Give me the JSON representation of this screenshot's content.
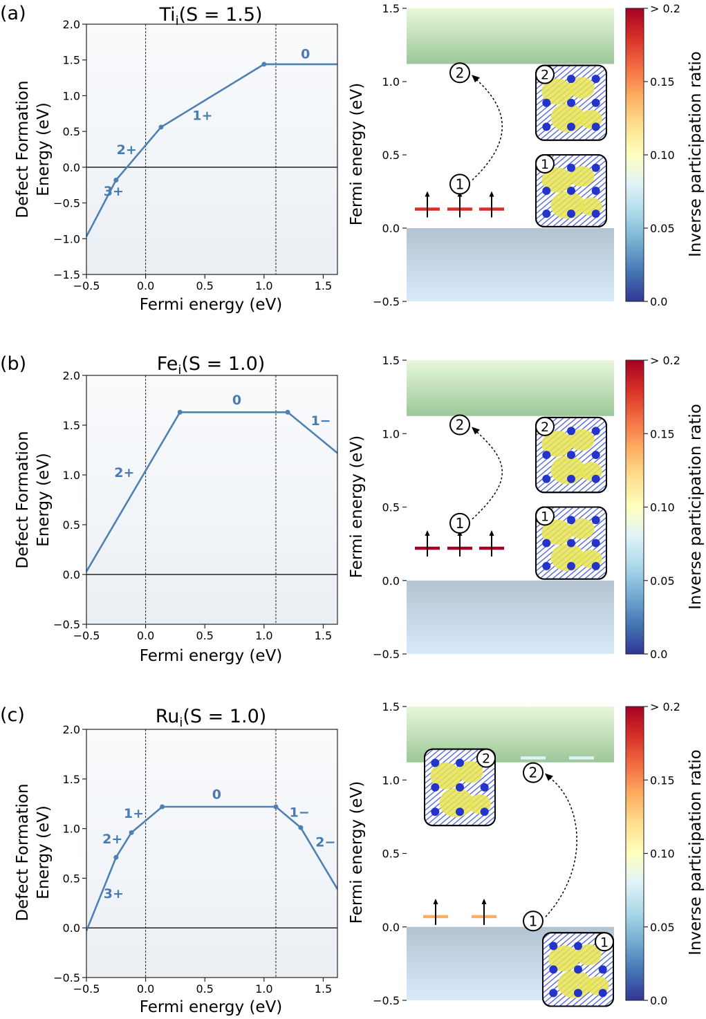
{
  "chart_data": [
    {
      "type": "line",
      "panel_label": "(a)",
      "title": "Ti",
      "title_subscript": "i",
      "title_suffix": "(S = 1.5)",
      "xlabel": "Fermi energy (eV)",
      "ylabel_line1": "Defect Formation",
      "ylabel_line2": "Energy (eV)",
      "xlim": [
        -0.5,
        1.62
      ],
      "ylim": [
        -1.5,
        2.0
      ],
      "xticks": [
        -0.5,
        0.0,
        0.5,
        1.0,
        1.5
      ],
      "xtick_labels": [
        "−0.5",
        "0.0",
        "0.5",
        "1.0",
        "1.5"
      ],
      "yticks": [
        -1.5,
        -1.0,
        -0.5,
        0.0,
        0.5,
        1.0,
        1.5,
        2.0
      ],
      "ytick_labels": [
        "−1.5",
        "−1.0",
        "−0.5",
        "0.0",
        "0.5",
        "1.0",
        "1.5",
        "2.0"
      ],
      "vlines": [
        0.0,
        1.1
      ],
      "line_x": [
        -0.5,
        -0.25,
        0.13,
        1.0,
        1.62
      ],
      "line_y": [
        -0.97,
        -0.18,
        0.56,
        1.44,
        1.44
      ],
      "transitions": [
        [
          -0.25,
          -0.18
        ],
        [
          0.13,
          0.56
        ],
        [
          1.0,
          1.44
        ]
      ],
      "charge_labels": [
        {
          "text": "3+",
          "x": -0.27,
          "y": -0.4
        },
        {
          "text": "2+",
          "x": -0.16,
          "y": 0.18
        },
        {
          "text": "1+",
          "x": 0.48,
          "y": 0.66
        },
        {
          "text": "0",
          "x": 1.35,
          "y": 1.52
        }
      ]
    },
    {
      "type": "line",
      "panel_label": "(b)",
      "title": "Fe",
      "title_subscript": "i",
      "title_suffix": "(S = 1.0)",
      "xlabel": "Fermi energy (eV)",
      "ylabel_line1": "Defect Formation",
      "ylabel_line2": "Energy (eV)",
      "xlim": [
        -0.5,
        1.62
      ],
      "ylim": [
        -0.5,
        2.0
      ],
      "xticks": [
        -0.5,
        0.0,
        0.5,
        1.0,
        1.5
      ],
      "xtick_labels": [
        "−0.5",
        "0.0",
        "0.5",
        "1.0",
        "1.5"
      ],
      "yticks": [
        -0.5,
        0.0,
        0.5,
        1.0,
        1.5,
        2.0
      ],
      "ytick_labels": [
        "−0.5",
        "0.0",
        "0.5",
        "1.0",
        "1.5",
        "2.0"
      ],
      "vlines": [
        0.0,
        1.1
      ],
      "line_x": [
        -0.5,
        0.29,
        1.2,
        1.62
      ],
      "line_y": [
        0.03,
        1.63,
        1.63,
        1.22
      ],
      "transitions": [
        [
          0.29,
          1.63
        ],
        [
          1.2,
          1.63
        ]
      ],
      "charge_labels": [
        {
          "text": "2+",
          "x": -0.18,
          "y": 0.98
        },
        {
          "text": "0",
          "x": 0.77,
          "y": 1.71
        },
        {
          "text": "1−",
          "x": 1.48,
          "y": 1.5
        }
      ]
    },
    {
      "type": "line",
      "panel_label": "(c)",
      "title": "Ru",
      "title_subscript": "i",
      "title_suffix": "(S = 1.0)",
      "xlabel": "Fermi energy (eV)",
      "ylabel_line1": "Defect Formation",
      "ylabel_line2": "Energy (eV)",
      "xlim": [
        -0.5,
        1.62
      ],
      "ylim": [
        -0.5,
        2.0
      ],
      "xticks": [
        -0.5,
        0.0,
        0.5,
        1.0,
        1.5
      ],
      "xtick_labels": [
        "−0.5",
        "0.0",
        "0.5",
        "1.0",
        "1.5"
      ],
      "yticks": [
        -0.5,
        0.0,
        0.5,
        1.0,
        1.5,
        2.0
      ],
      "ytick_labels": [
        "−0.5",
        "0.0",
        "0.5",
        "1.0",
        "1.5",
        "2.0"
      ],
      "vlines": [
        0.0,
        1.1
      ],
      "line_x": [
        -0.5,
        -0.25,
        -0.12,
        0.14,
        1.1,
        1.31,
        1.62
      ],
      "line_y": [
        -0.03,
        0.71,
        0.96,
        1.22,
        1.22,
        1.01,
        0.39
      ],
      "transitions": [
        [
          -0.25,
          0.71
        ],
        [
          -0.12,
          0.96
        ],
        [
          0.14,
          1.22
        ],
        [
          1.1,
          1.22
        ],
        [
          1.31,
          1.01
        ]
      ],
      "charge_labels": [
        {
          "text": "3+",
          "x": -0.27,
          "y": 0.3
        },
        {
          "text": "2+",
          "x": -0.28,
          "y": 0.85
        },
        {
          "text": "1+",
          "x": -0.1,
          "y": 1.11
        },
        {
          "text": "0",
          "x": 0.6,
          "y": 1.3
        },
        {
          "text": "1−",
          "x": 1.3,
          "y": 1.12
        },
        {
          "text": "2−",
          "x": 1.52,
          "y": 0.82
        }
      ]
    },
    {
      "type": "level-diagram",
      "ylabel": "Fermi energy (eV)",
      "ylim": [
        -0.5,
        1.5
      ],
      "yticks": [
        -0.5,
        0.0,
        0.5,
        1.0,
        1.5
      ],
      "ytick_labels": [
        "−0.5",
        "0.0",
        "0.5",
        "1.0",
        "1.5"
      ],
      "cbm": 1.12,
      "levels": [
        {
          "energy": 0.13,
          "ipr": 0.17,
          "spin": "up",
          "count": 3
        }
      ],
      "transition": {
        "from_label": "1",
        "to_label": "2",
        "from_y": 0.3,
        "to_y": 1.06
      },
      "colorbar_label": "Inverse participation ratio",
      "colorbar_ticks": [
        "0.0",
        "0.05",
        "0.10",
        "0.15",
        "> 0.2"
      ]
    },
    {
      "type": "level-diagram",
      "ylabel": "Fermi energy (eV)",
      "ylim": [
        -0.5,
        1.5
      ],
      "yticks": [
        -0.5,
        0.0,
        0.5,
        1.0,
        1.5
      ],
      "ytick_labels": [
        "−0.5",
        "0.0",
        "0.5",
        "1.0",
        "1.5"
      ],
      "cbm": 1.12,
      "levels": [
        {
          "energy": 0.22,
          "ipr": 0.19,
          "spin": "up",
          "count": 3
        }
      ],
      "transition": {
        "from_label": "1",
        "to_label": "2",
        "from_y": 0.39,
        "to_y": 1.06
      },
      "colorbar_label": "Inverse participation ratio",
      "colorbar_ticks": [
        "0.0",
        "0.05",
        "0.10",
        "0.15",
        "> 0.2"
      ]
    },
    {
      "type": "level-diagram",
      "ylabel": "Fermi energy (eV)",
      "ylim": [
        -0.5,
        1.5
      ],
      "yticks": [
        -0.5,
        0.0,
        0.5,
        1.0,
        1.5
      ],
      "ytick_labels": [
        "−0.5",
        "0.0",
        "0.5",
        "1.0",
        "1.5"
      ],
      "cbm": 1.12,
      "levels": [
        {
          "energy": 0.07,
          "ipr": 0.15,
          "spin": "up",
          "count": 2
        },
        {
          "energy": 1.15,
          "ipr": 0.07,
          "spin": "none",
          "count": 2
        }
      ],
      "transition": {
        "from_label": "1",
        "to_label": "2",
        "from_y": 0.04,
        "to_y": 1.05
      },
      "colorbar_label": "Inverse participation ratio",
      "colorbar_ticks": [
        "0.0",
        "0.05",
        "0.10",
        "0.15",
        "> 0.2"
      ]
    }
  ]
}
